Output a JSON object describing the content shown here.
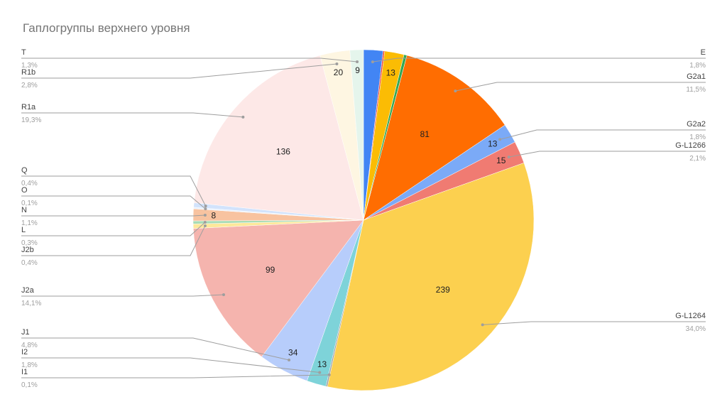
{
  "chart_data": {
    "type": "pie",
    "title": "Гаплогруппы верхнего уровня",
    "slices": [
      {
        "label": "E",
        "value": 13,
        "percent": "1,8%",
        "color": "#4285f4",
        "show_value": false
      },
      {
        "label": "",
        "value": 1,
        "percent": "",
        "color": "#ea4335",
        "show_value": false
      },
      {
        "label": "",
        "value": 13,
        "percent": "",
        "color": "#fbbc04",
        "show_value": true
      },
      {
        "label": "",
        "value": 2,
        "percent": "",
        "color": "#34a853",
        "show_value": false
      },
      {
        "label": "G2a1",
        "value": 81,
        "percent": "11,5%",
        "color": "#ff6d01",
        "show_value": true
      },
      {
        "label": "G2a2",
        "value": 13,
        "percent": "1,8%",
        "color": "#7baaf7",
        "show_value": true
      },
      {
        "label": "G-L1266",
        "value": 15,
        "percent": "2,1%",
        "color": "#f07b72",
        "show_value": true
      },
      {
        "label": "G-L1264",
        "value": 239,
        "percent": "34,0%",
        "color": "#fcd04f",
        "show_value": true
      },
      {
        "label": "I1",
        "value": 1,
        "percent": "0,1%",
        "color": "#a0a0a0",
        "show_value": false
      },
      {
        "label": "I2",
        "value": 13,
        "percent": "1,8%",
        "color": "#7ed3d9",
        "show_value": true
      },
      {
        "label": "J1",
        "value": 34,
        "percent": "4,8%",
        "color": "#b7cdfb",
        "show_value": true
      },
      {
        "label": "J2a",
        "value": 99,
        "percent": "14,1%",
        "color": "#f5b4ae",
        "show_value": true
      },
      {
        "label": "J2b",
        "value": 3,
        "percent": "0,4%",
        "color": "#fde89a",
        "show_value": false
      },
      {
        "label": "L",
        "value": 2,
        "percent": "0,3%",
        "color": "#a8dcb6",
        "show_value": false
      },
      {
        "label": "N",
        "value": 8,
        "percent": "1,1%",
        "color": "#f8c3a0",
        "show_value": true
      },
      {
        "label": "O",
        "value": 1,
        "percent": "0,1%",
        "color": "#e9f1fd",
        "show_value": false
      },
      {
        "label": "Q",
        "value": 3,
        "percent": "0,4%",
        "color": "#d2e3fc",
        "show_value": false
      },
      {
        "label": "R1a",
        "value": 136,
        "percent": "19,3%",
        "color": "#fde8e7",
        "show_value": true
      },
      {
        "label": "R1b",
        "value": 20,
        "percent": "2,8%",
        "color": "#fef6e2",
        "show_value": true
      },
      {
        "label": "T",
        "value": 9,
        "percent": "1,3%",
        "color": "#e5f5ec",
        "show_value": true
      }
    ]
  }
}
